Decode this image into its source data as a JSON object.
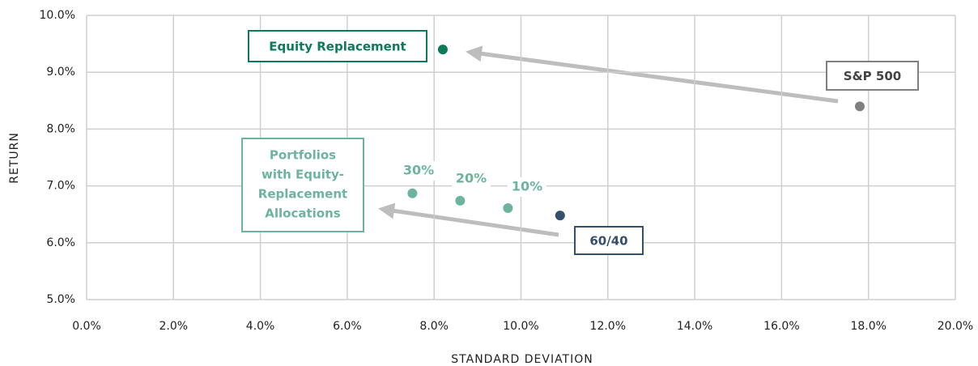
{
  "chart_data": {
    "type": "scatter",
    "xlabel": "STANDARD DEVIATION",
    "ylabel": "RETURN",
    "xlim": [
      0,
      20
    ],
    "ylim": [
      5,
      10
    ],
    "xticks": [
      {
        "value": 0,
        "label": "0.0%"
      },
      {
        "value": 2,
        "label": "2.0%"
      },
      {
        "value": 4,
        "label": "4.0%"
      },
      {
        "value": 6,
        "label": "6.0%"
      },
      {
        "value": 8,
        "label": "8.0%"
      },
      {
        "value": 10,
        "label": "10.0%"
      },
      {
        "value": 12,
        "label": "12.0%"
      },
      {
        "value": 14,
        "label": "14.0%"
      },
      {
        "value": 16,
        "label": "16.0%"
      },
      {
        "value": 18,
        "label": "18.0%"
      },
      {
        "value": 20,
        "label": "20.0%"
      }
    ],
    "yticks": [
      {
        "value": 5,
        "label": "5.0%"
      },
      {
        "value": 6,
        "label": "6.0%"
      },
      {
        "value": 7,
        "label": "7.0%"
      },
      {
        "value": 8,
        "label": "8.0%"
      },
      {
        "value": 9,
        "label": "9.0%"
      },
      {
        "value": 10,
        "label": "10.0%"
      }
    ],
    "grid": true,
    "series": [
      {
        "name": "Equity Replacement",
        "color": "#0e7a5c",
        "x": [
          8.2
        ],
        "values": [
          9.4
        ]
      },
      {
        "name": "S&P 500",
        "color": "#808080",
        "x": [
          17.8
        ],
        "values": [
          8.4
        ]
      },
      {
        "name": "60/40",
        "color": "#34506e",
        "x": [
          10.9
        ],
        "values": [
          6.48
        ]
      },
      {
        "label_lines": [
          "Portfolios",
          "with Equity-",
          "Replacement",
          "Allocations"
        ],
        "color": "#6db59a",
        "x": [
          7.5,
          8.6,
          9.7
        ],
        "values": [
          6.87,
          6.74,
          6.61
        ],
        "point_labels": [
          "30%",
          "20%",
          "10%"
        ]
      }
    ]
  }
}
